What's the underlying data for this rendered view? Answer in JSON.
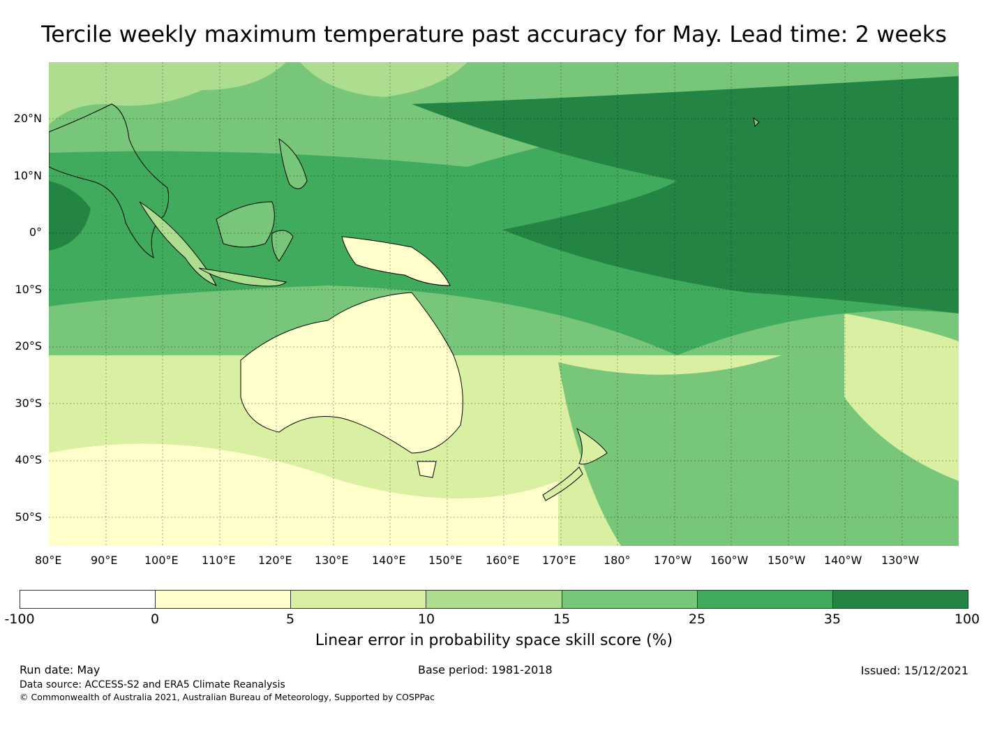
{
  "title": "Tercile weekly maximum temperature past accuracy for May. Lead time: 2 weeks",
  "map": {
    "lat_labels": [
      "20°N",
      "10°N",
      "0°",
      "10°S",
      "20°S",
      "30°S",
      "40°S",
      "50°S"
    ],
    "lon_labels": [
      "80°E",
      "90°E",
      "100°E",
      "110°E",
      "120°E",
      "130°E",
      "140°E",
      "150°E",
      "160°E",
      "170°E",
      "180°",
      "170°W",
      "160°W",
      "150°W",
      "140°W",
      "130°W"
    ],
    "extent": {
      "lon": [
        80,
        240
      ],
      "lat": [
        -55,
        30
      ]
    },
    "field": "Linear error in probability space skill score, shaded by category"
  },
  "colorbar": {
    "ticks": [
      "-100",
      "0",
      "5",
      "10",
      "15",
      "25",
      "35",
      "100"
    ],
    "colors": [
      "#ffffff",
      "#ffffcc",
      "#d9f0a3",
      "#addd8e",
      "#78c679",
      "#41ab5d",
      "#238443"
    ],
    "label": "Linear error in probability space skill score (%)"
  },
  "footer": {
    "run_date": "Run date: May",
    "base_period": "Base period: 1981-2018",
    "issued": "Issued: 15/12/2021",
    "data_source": "Data source: ACCESS-S2 and ERA5 Climate Reanalysis",
    "copyright": "© Commonwealth of Australia 2021, Australian Bureau of Meteorology, Supported by COSPPac"
  }
}
